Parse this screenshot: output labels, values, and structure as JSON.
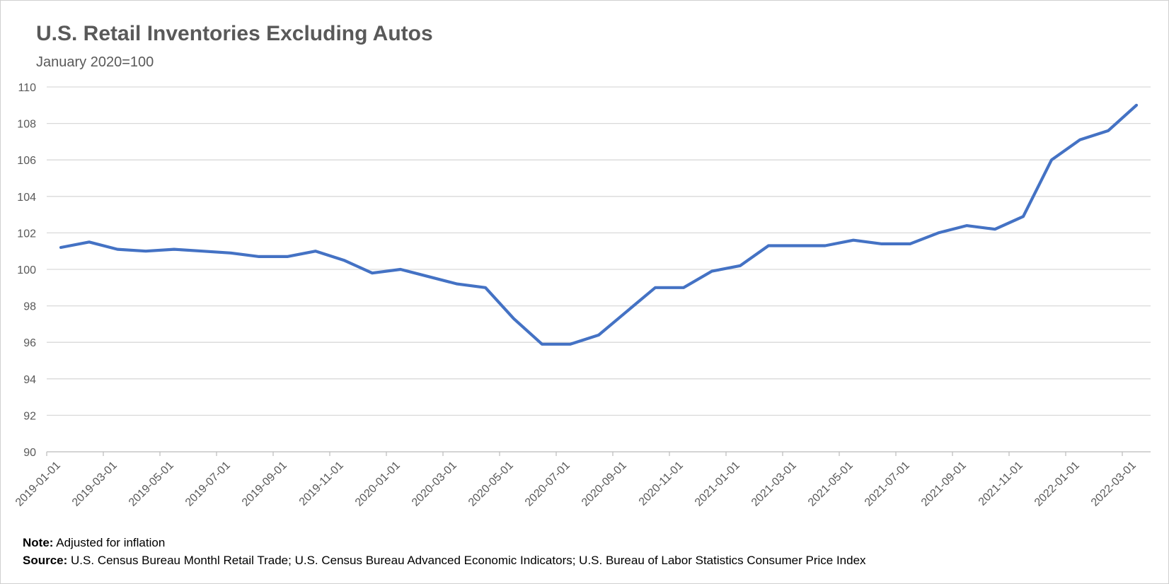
{
  "chart_data": {
    "type": "line",
    "title": "U.S. Retail Inventories Excluding Autos",
    "subtitle": "January 2020=100",
    "xlabel": "",
    "ylabel": "",
    "ylim": [
      90,
      110
    ],
    "yticks": [
      90,
      92,
      94,
      96,
      98,
      100,
      102,
      104,
      106,
      108,
      110
    ],
    "grid": true,
    "legend": "none",
    "series_color": "#4472C4",
    "x": [
      "2019-01-01",
      "2019-02-01",
      "2019-03-01",
      "2019-04-01",
      "2019-05-01",
      "2019-06-01",
      "2019-07-01",
      "2019-08-01",
      "2019-09-01",
      "2019-10-01",
      "2019-11-01",
      "2019-12-01",
      "2020-01-01",
      "2020-02-01",
      "2020-03-01",
      "2020-04-01",
      "2020-05-01",
      "2020-06-01",
      "2020-07-01",
      "2020-08-01",
      "2020-09-01",
      "2020-10-01",
      "2020-11-01",
      "2020-12-01",
      "2021-01-01",
      "2021-02-01",
      "2021-03-01",
      "2021-04-01",
      "2021-05-01",
      "2021-06-01",
      "2021-07-01",
      "2021-08-01",
      "2021-09-01",
      "2021-10-01",
      "2021-11-01",
      "2021-12-01",
      "2022-01-01",
      "2022-02-01",
      "2022-03-01"
    ],
    "xtick_labels": [
      "2019-01-01",
      "2019-03-01",
      "2019-05-01",
      "2019-07-01",
      "2019-09-01",
      "2019-11-01",
      "2020-01-01",
      "2020-03-01",
      "2020-05-01",
      "2020-07-01",
      "2020-09-01",
      "2020-11-01",
      "2021-01-01",
      "2021-03-01",
      "2021-05-01",
      "2021-07-01",
      "2021-09-01",
      "2021-11-01",
      "2022-01-01",
      "2022-03-01"
    ],
    "series": [
      {
        "values": [
          101.2,
          101.5,
          101.1,
          101.0,
          101.1,
          101.0,
          100.9,
          100.7,
          100.7,
          101.0,
          100.5,
          99.8,
          100.0,
          99.6,
          99.2,
          99.0,
          97.3,
          95.9,
          95.9,
          96.4,
          97.7,
          99.0,
          99.0,
          99.9,
          100.2,
          101.3,
          101.3,
          101.3,
          101.6,
          101.4,
          101.4,
          102.0,
          102.4,
          102.2,
          102.9,
          106.0,
          107.1,
          107.6,
          109.0
        ]
      }
    ]
  },
  "footer": {
    "note_label": "Note:",
    "note_text": "Adjusted for inflation",
    "source_label": "Source:",
    "source_text": "U.S. Census Bureau Monthl Retail Trade; U.S. Census Bureau Advanced Economic Indicators; U.S. Bureau of Labor Statistics Consumer Price Index"
  }
}
